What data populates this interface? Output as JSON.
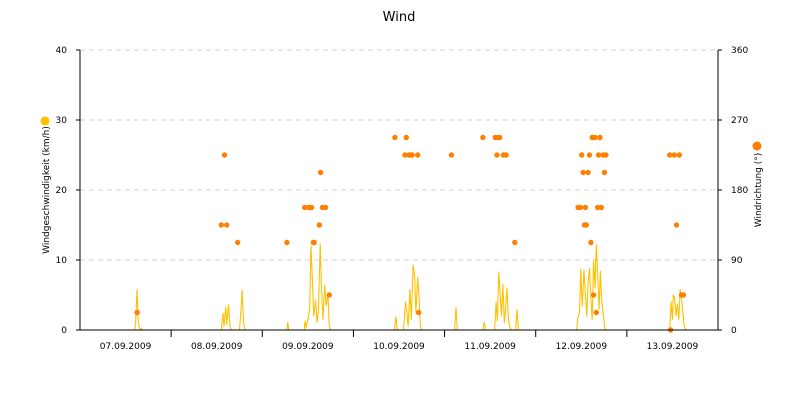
{
  "chart_data": {
    "type": "line",
    "title": "Wind",
    "grid": true,
    "left_axis": {
      "label": "Windgeschwindigkeit (km/h)",
      "ylim": [
        0,
        40
      ],
      "ticks": [
        "0",
        "10",
        "20",
        "30",
        "40"
      ],
      "legend_color": "#ffc000"
    },
    "right_axis": {
      "label": "Windrichtung (°)",
      "ylim": [
        0,
        360
      ],
      "ticks": [
        "0",
        "90",
        "180",
        "270",
        "360"
      ],
      "legend_color": "#ff7f00"
    },
    "x_axis": {
      "xlim": [
        0,
        7
      ],
      "categories": [
        "07.09.2009",
        "08.09.2009",
        "09.09.2009",
        "10.09.2009",
        "11.09.2009",
        "12.09.2009",
        "13.09.2009"
      ]
    },
    "series": [
      {
        "key": "speed",
        "axis": "left",
        "kind": "line",
        "color": "#ffc000",
        "points": [
          [
            0.0,
            0
          ],
          [
            0.6,
            0
          ],
          [
            0.61,
            1
          ],
          [
            0.625,
            5.8
          ],
          [
            0.64,
            1
          ],
          [
            0.66,
            0
          ],
          [
            0.67,
            0.2
          ],
          [
            0.68,
            0
          ],
          [
            1.0,
            0
          ],
          [
            1.55,
            0
          ],
          [
            1.57,
            2.4
          ],
          [
            1.58,
            0.5
          ],
          [
            1.6,
            3.3
          ],
          [
            1.61,
            0.8
          ],
          [
            1.63,
            3.6
          ],
          [
            1.645,
            0.5
          ],
          [
            1.66,
            0
          ],
          [
            1.75,
            0
          ],
          [
            1.77,
            3.5
          ],
          [
            1.78,
            5.7
          ],
          [
            1.795,
            1.1
          ],
          [
            1.81,
            0
          ],
          [
            2.0,
            0
          ],
          [
            2.27,
            0
          ],
          [
            2.28,
            1.1
          ],
          [
            2.29,
            0
          ],
          [
            2.46,
            0
          ],
          [
            2.47,
            1.3
          ],
          [
            2.48,
            0.3
          ],
          [
            2.5,
            1.5
          ],
          [
            2.52,
            3.0
          ],
          [
            2.535,
            12.0
          ],
          [
            2.55,
            7.0
          ],
          [
            2.565,
            2.0
          ],
          [
            2.585,
            4.3
          ],
          [
            2.6,
            1.1
          ],
          [
            2.615,
            2.5
          ],
          [
            2.635,
            12.3
          ],
          [
            2.65,
            6.0
          ],
          [
            2.665,
            1.5
          ],
          [
            2.685,
            6.4
          ],
          [
            2.7,
            3.5
          ],
          [
            2.72,
            5.1
          ],
          [
            2.735,
            0.5
          ],
          [
            2.75,
            0
          ],
          [
            3.0,
            0
          ],
          [
            3.45,
            0
          ],
          [
            3.465,
            1.9
          ],
          [
            3.48,
            0
          ],
          [
            3.55,
            0
          ],
          [
            3.57,
            4.0
          ],
          [
            3.585,
            2.8
          ],
          [
            3.6,
            0.5
          ],
          [
            3.62,
            5.8
          ],
          [
            3.635,
            1.5
          ],
          [
            3.655,
            9.3
          ],
          [
            3.67,
            8.0
          ],
          [
            3.685,
            2.5
          ],
          [
            3.705,
            7.5
          ],
          [
            3.72,
            4.5
          ],
          [
            3.735,
            0.5
          ],
          [
            3.75,
            0
          ],
          [
            4.0,
            0
          ],
          [
            4.11,
            0
          ],
          [
            4.125,
            3.2
          ],
          [
            4.14,
            0
          ],
          [
            4.42,
            0
          ],
          [
            4.435,
            1.1
          ],
          [
            4.45,
            0
          ],
          [
            4.55,
            0
          ],
          [
            4.565,
            4.0
          ],
          [
            4.58,
            1.3
          ],
          [
            4.595,
            8.3
          ],
          [
            4.61,
            5.0
          ],
          [
            4.625,
            2.0
          ],
          [
            4.64,
            6.5
          ],
          [
            4.655,
            1.0
          ],
          [
            4.67,
            3.0
          ],
          [
            4.685,
            6.0
          ],
          [
            4.7,
            1.5
          ],
          [
            4.715,
            0.5
          ],
          [
            4.73,
            0
          ],
          [
            4.78,
            0
          ],
          [
            4.795,
            2.9
          ],
          [
            4.81,
            0
          ],
          [
            5.0,
            0
          ],
          [
            5.45,
            0
          ],
          [
            5.46,
            1.5
          ],
          [
            5.48,
            2.6
          ],
          [
            5.495,
            8.7
          ],
          [
            5.51,
            3.4
          ],
          [
            5.53,
            8.5
          ],
          [
            5.545,
            5.0
          ],
          [
            5.56,
            2.0
          ],
          [
            5.575,
            6.8
          ],
          [
            5.59,
            8.8
          ],
          [
            5.605,
            4.5
          ],
          [
            5.62,
            1.5
          ],
          [
            5.635,
            10.0
          ],
          [
            5.65,
            6.0
          ],
          [
            5.665,
            12.2
          ],
          [
            5.68,
            8.0
          ],
          [
            5.695,
            3.0
          ],
          [
            5.71,
            8.4
          ],
          [
            5.725,
            4.0
          ],
          [
            5.74,
            2.5
          ],
          [
            5.755,
            0.5
          ],
          [
            5.77,
            0
          ],
          [
            6.0,
            0
          ],
          [
            6.47,
            0
          ],
          [
            6.485,
            4.0
          ],
          [
            6.5,
            1.5
          ],
          [
            6.51,
            5.0
          ],
          [
            6.525,
            4.5
          ],
          [
            6.54,
            2.0
          ],
          [
            6.555,
            3.7
          ],
          [
            6.57,
            1.5
          ],
          [
            6.585,
            5.8
          ],
          [
            6.6,
            4.5
          ],
          [
            6.615,
            2.5
          ],
          [
            6.63,
            0.5
          ],
          [
            6.65,
            0
          ],
          [
            7.0,
            0
          ]
        ]
      },
      {
        "key": "direction",
        "axis": "right",
        "kind": "scatter",
        "color": "#ff7f00",
        "points": [
          [
            0.626,
            22.5
          ],
          [
            1.55,
            135
          ],
          [
            1.585,
            225
          ],
          [
            1.61,
            135
          ],
          [
            1.73,
            112.5
          ],
          [
            2.27,
            112.5
          ],
          [
            2.465,
            157.5
          ],
          [
            2.51,
            157.5
          ],
          [
            2.54,
            157.5
          ],
          [
            2.56,
            112.5
          ],
          [
            2.57,
            112.5
          ],
          [
            2.625,
            135
          ],
          [
            2.64,
            202.5
          ],
          [
            2.66,
            157.5
          ],
          [
            2.695,
            157.5
          ],
          [
            2.735,
            45
          ],
          [
            3.455,
            247.5
          ],
          [
            3.565,
            225
          ],
          [
            3.58,
            247.5
          ],
          [
            3.61,
            225
          ],
          [
            3.63,
            225
          ],
          [
            3.645,
            225
          ],
          [
            3.705,
            225
          ],
          [
            3.715,
            22.5
          ],
          [
            4.075,
            225
          ],
          [
            4.42,
            247.5
          ],
          [
            4.555,
            247.5
          ],
          [
            4.575,
            225
          ],
          [
            4.59,
            247.5
          ],
          [
            4.605,
            247.5
          ],
          [
            4.645,
            225
          ],
          [
            4.675,
            225
          ],
          [
            4.77,
            112.5
          ],
          [
            5.465,
            157.5
          ],
          [
            5.49,
            157.5
          ],
          [
            5.505,
            225
          ],
          [
            5.52,
            202.5
          ],
          [
            5.535,
            135
          ],
          [
            5.545,
            157.5
          ],
          [
            5.555,
            135
          ],
          [
            5.575,
            202.5
          ],
          [
            5.59,
            225
          ],
          [
            5.605,
            112.5
          ],
          [
            5.62,
            247.5
          ],
          [
            5.635,
            45
          ],
          [
            5.65,
            247.5
          ],
          [
            5.665,
            22.5
          ],
          [
            5.68,
            157.5
          ],
          [
            5.69,
            225
          ],
          [
            5.705,
            247.5
          ],
          [
            5.72,
            157.5
          ],
          [
            5.74,
            225
          ],
          [
            5.755,
            202.5
          ],
          [
            5.77,
            225
          ],
          [
            6.47,
            225
          ],
          [
            6.48,
            0
          ],
          [
            6.52,
            225
          ],
          [
            6.545,
            135
          ],
          [
            6.575,
            225
          ],
          [
            6.6,
            45
          ],
          [
            6.62,
            45
          ]
        ]
      }
    ]
  }
}
